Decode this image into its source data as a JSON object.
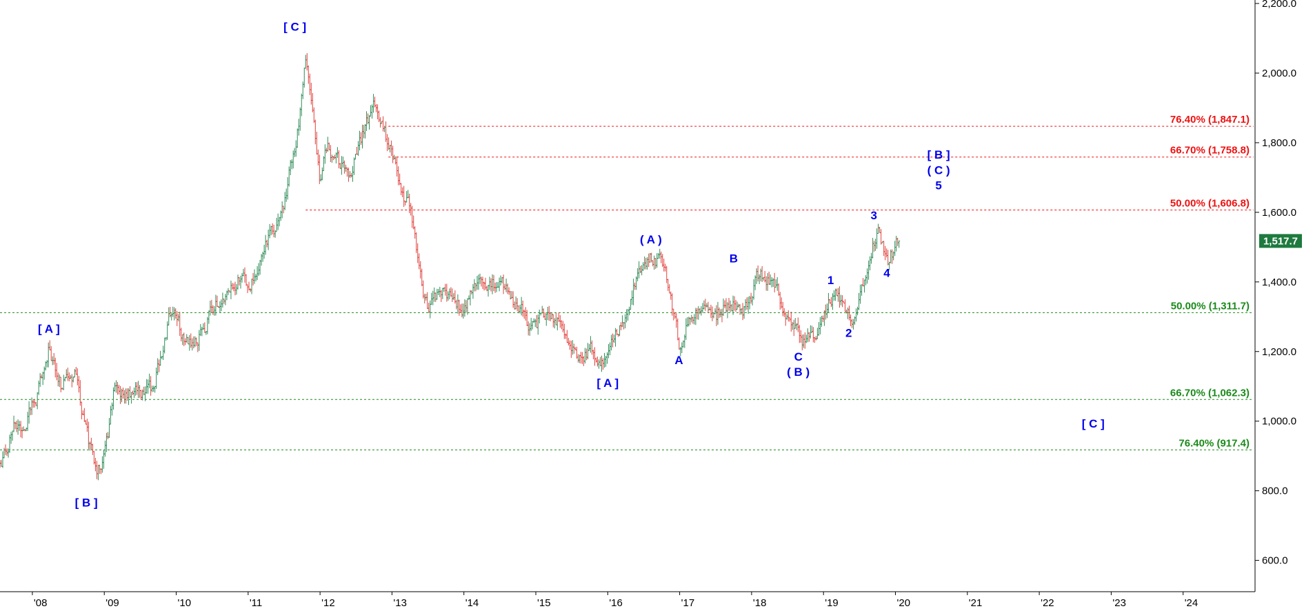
{
  "chart_data": {
    "type": "ohlc",
    "x_range": [
      2007.55,
      2025.0
    ],
    "y_range": [
      510,
      2210
    ],
    "y_ticks": [
      600,
      800,
      1000,
      1200,
      1400,
      1600,
      1800,
      2000,
      2200
    ],
    "y_tick_labels": [
      "600.0",
      "800.0",
      "1,000.0",
      "1,200.0",
      "1,400.0",
      "1,600.0",
      "1,800.0",
      "2,000.0",
      "2,200.0"
    ],
    "x_ticks": [
      2008,
      2009,
      2010,
      2011,
      2012,
      2013,
      2014,
      2015,
      2016,
      2017,
      2018,
      2019,
      2020,
      2021,
      2022,
      2023,
      2024
    ],
    "x_tick_labels": [
      "'08",
      "'09",
      "'10",
      "'11",
      "'12",
      "'13",
      "'14",
      "'15",
      "'16",
      "'17",
      "'18",
      "'19",
      "'20",
      "'21",
      "'22",
      "'23",
      "'24"
    ],
    "colors": {
      "up": "#2e8b57",
      "down": "#e0403a",
      "fib_resistance": "#ee1111",
      "fib_support": "#1a8a1a",
      "wave_label": "#0000ee",
      "price_badge": "#1e7a3e"
    },
    "last_price": 1517.7,
    "last_price_label": "1,517.7",
    "price_path": [
      [
        2007.55,
        870
      ],
      [
        2007.75,
        990
      ],
      [
        2007.9,
        1000
      ],
      [
        2008.05,
        1050
      ],
      [
        2008.23,
        1215
      ],
      [
        2008.4,
        1100
      ],
      [
        2008.6,
        1150
      ],
      [
        2008.72,
        1000
      ],
      [
        2008.88,
        850
      ],
      [
        2009.0,
        900
      ],
      [
        2009.15,
        1100
      ],
      [
        2009.4,
        1070
      ],
      [
        2009.7,
        1100
      ],
      [
        2009.92,
        1320
      ],
      [
        2010.1,
        1250
      ],
      [
        2010.3,
        1230
      ],
      [
        2010.55,
        1330
      ],
      [
        2010.9,
        1420
      ],
      [
        2011.0,
        1380
      ],
      [
        2011.3,
        1530
      ],
      [
        2011.5,
        1620
      ],
      [
        2011.7,
        1860
      ],
      [
        2011.8,
        2060
      ],
      [
        2012.0,
        1700
      ],
      [
        2012.1,
        1800
      ],
      [
        2012.4,
        1690
      ],
      [
        2012.73,
        1910
      ],
      [
        2012.9,
        1830
      ],
      [
        2013.0,
        1780
      ],
      [
        2013.25,
        1600
      ],
      [
        2013.5,
        1310
      ],
      [
        2013.7,
        1390
      ],
      [
        2013.99,
        1320
      ],
      [
        2014.2,
        1380
      ],
      [
        2014.4,
        1400
      ],
      [
        2014.6,
        1380
      ],
      [
        2014.9,
        1280
      ],
      [
        2015.2,
        1300
      ],
      [
        2015.4,
        1260
      ],
      [
        2015.6,
        1180
      ],
      [
        2015.8,
        1210
      ],
      [
        2015.96,
        1170
      ],
      [
        2016.2,
        1280
      ],
      [
        2016.4,
        1400
      ],
      [
        2016.6,
        1470
      ],
      [
        2016.8,
        1440
      ],
      [
        2016.99,
        1220
      ],
      [
        2017.2,
        1310
      ],
      [
        2017.5,
        1300
      ],
      [
        2017.7,
        1350
      ],
      [
        2017.9,
        1320
      ],
      [
        2018.1,
        1420
      ],
      [
        2018.3,
        1400
      ],
      [
        2018.55,
        1270
      ],
      [
        2018.72,
        1220
      ],
      [
        2018.9,
        1240
      ],
      [
        2019.05,
        1320
      ],
      [
        2019.15,
        1370
      ],
      [
        2019.3,
        1300
      ],
      [
        2019.45,
        1310
      ],
      [
        2019.65,
        1500
      ],
      [
        2019.75,
        1550
      ],
      [
        2019.9,
        1470
      ],
      [
        2020.05,
        1517.7
      ]
    ],
    "fib_levels": [
      {
        "label": "76.40% (1,847.1)",
        "value": 1847.1,
        "group": "resistance",
        "x_start": 2012.95
      },
      {
        "label": "66.70% (1,758.8)",
        "value": 1758.8,
        "group": "resistance",
        "x_start": 2012.95
      },
      {
        "label": "50.00% (1,606.8)",
        "value": 1606.8,
        "group": "resistance",
        "x_start": 2011.8
      },
      {
        "label": "50.00% (1,311.7)",
        "value": 1311.7,
        "group": "support",
        "x_start": 2007.55
      },
      {
        "label": "66.70% (1,062.3)",
        "value": 1062.3,
        "group": "support",
        "x_start": 2007.55
      },
      {
        "label": "76.40% (917.4)",
        "value": 917.4,
        "group": "support",
        "x_start": 2007.55
      }
    ],
    "wave_labels": [
      {
        "text": "[ A ]",
        "x": 2008.23,
        "y": 1266
      },
      {
        "text": "[ B ]",
        "x": 2008.75,
        "y": 767
      },
      {
        "text": "[ C ]",
        "x": 2011.65,
        "y": 2134
      },
      {
        "text": "[ A ]",
        "x": 2016.0,
        "y": 1110
      },
      {
        "text": "( A )",
        "x": 2016.6,
        "y": 1522
      },
      {
        "text": "A",
        "x": 2016.99,
        "y": 1176
      },
      {
        "text": "B",
        "x": 2017.75,
        "y": 1468
      },
      {
        "text": "C",
        "x": 2018.65,
        "y": 1186
      },
      {
        "text": "( B )",
        "x": 2018.65,
        "y": 1142
      },
      {
        "text": "1",
        "x": 2019.1,
        "y": 1406
      },
      {
        "text": "2",
        "x": 2019.35,
        "y": 1254
      },
      {
        "text": "3",
        "x": 2019.7,
        "y": 1592
      },
      {
        "text": "4",
        "x": 2019.88,
        "y": 1426
      },
      {
        "text": "[ B ]",
        "x": 2020.6,
        "y": 1766
      },
      {
        "text": "( C )",
        "x": 2020.6,
        "y": 1722
      },
      {
        "text": "5",
        "x": 2020.6,
        "y": 1678
      },
      {
        "text": "[ C ]",
        "x": 2022.75,
        "y": 993
      }
    ]
  }
}
